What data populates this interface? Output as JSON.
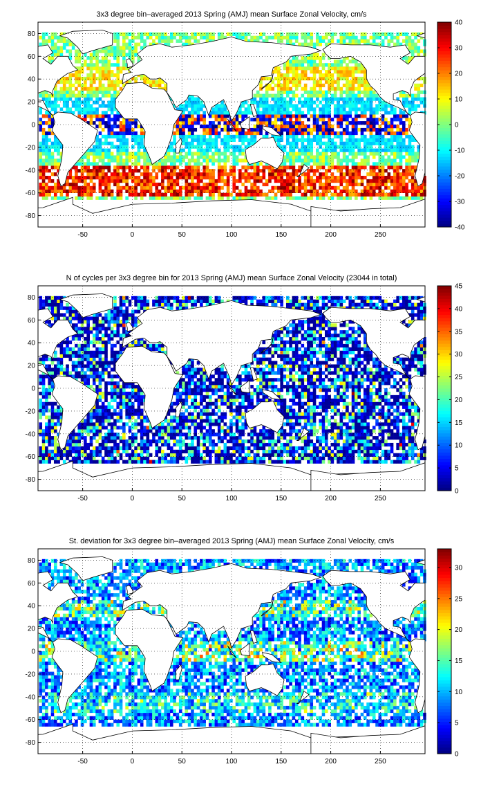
{
  "figure": {
    "background": "#ffffff",
    "colormap": "jet"
  },
  "chart_data": [
    {
      "type": "heatmap",
      "title": "3x3 degree bin–averaged 2013 Spring (AMJ) mean Surface Zonal Velocity, cm/s",
      "xlim": [
        -95,
        295
      ],
      "ylim": [
        -90,
        90
      ],
      "xticks": [
        -50,
        0,
        50,
        100,
        150,
        200,
        250
      ],
      "yticks": [
        -80,
        -60,
        -40,
        -20,
        0,
        20,
        40,
        60,
        80
      ],
      "grid": true,
      "grid_style": "dotted",
      "bin_size_deg": 3,
      "colorbar": {
        "min": -40,
        "max": 40,
        "ticks": [
          -40,
          -30,
          -20,
          -10,
          0,
          10,
          20,
          30,
          40
        ]
      },
      "field": "zonal_velocity"
    },
    {
      "type": "heatmap",
      "title": "N of cycles per 3x3 degree bin for 2013 Spring (AMJ) mean Surface Zonal Velocity (23044 in total)",
      "xlim": [
        -95,
        295
      ],
      "ylim": [
        -90,
        90
      ],
      "xticks": [
        -50,
        0,
        50,
        100,
        150,
        200,
        250
      ],
      "yticks": [
        -80,
        -60,
        -40,
        -20,
        0,
        20,
        40,
        60,
        80
      ],
      "grid": true,
      "grid_style": "dotted",
      "bin_size_deg": 3,
      "colorbar": {
        "min": 0,
        "max": 45,
        "ticks": [
          0,
          5,
          10,
          15,
          20,
          25,
          30,
          35,
          40,
          45
        ]
      },
      "field": "cycle_count"
    },
    {
      "type": "heatmap",
      "title": "St. deviation for 3x3 degree bin–averaged 2013 Spring (AMJ) mean Surface Zonal Velocity, cm/s",
      "xlim": [
        -95,
        295
      ],
      "ylim": [
        -90,
        90
      ],
      "xticks": [
        -50,
        0,
        50,
        100,
        150,
        200,
        250
      ],
      "yticks": [
        -80,
        -60,
        -40,
        -20,
        0,
        20,
        40,
        60,
        80
      ],
      "grid": true,
      "grid_style": "dotted",
      "bin_size_deg": 3,
      "colorbar": {
        "min": 0,
        "max": 33,
        "ticks": [
          0,
          5,
          10,
          15,
          20,
          25,
          30
        ]
      },
      "field": "std_dev"
    }
  ]
}
